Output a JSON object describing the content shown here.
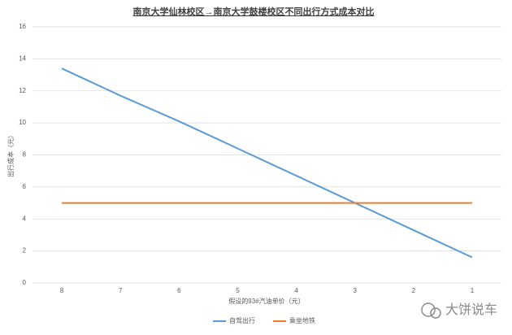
{
  "chart_data": {
    "type": "line",
    "title": "南京大学仙林校区→南京大学鼓楼校区不同出行方式成本对比",
    "y_label": "出行成本（元）",
    "x_label": "假设的93#汽油单价（元）",
    "categories": [
      "8",
      "7",
      "6",
      "5",
      "4",
      "3",
      "2",
      "1"
    ],
    "series": [
      {
        "name": "自驾出行",
        "color": "#5b9bd5",
        "values": [
          13.4,
          11.7,
          10.1,
          8.4,
          6.7,
          5.0,
          3.3,
          1.6
        ]
      },
      {
        "name": "乘坐地铁",
        "color": "#ed7d31",
        "values": [
          5,
          5,
          5,
          5,
          5,
          5,
          5,
          5
        ]
      }
    ],
    "ylim": [
      0,
      16
    ],
    "yticks": [
      0,
      2,
      4,
      6,
      8,
      10,
      12,
      14,
      16
    ],
    "grid": true,
    "legend": "bottom",
    "watermark": "大饼说车"
  }
}
